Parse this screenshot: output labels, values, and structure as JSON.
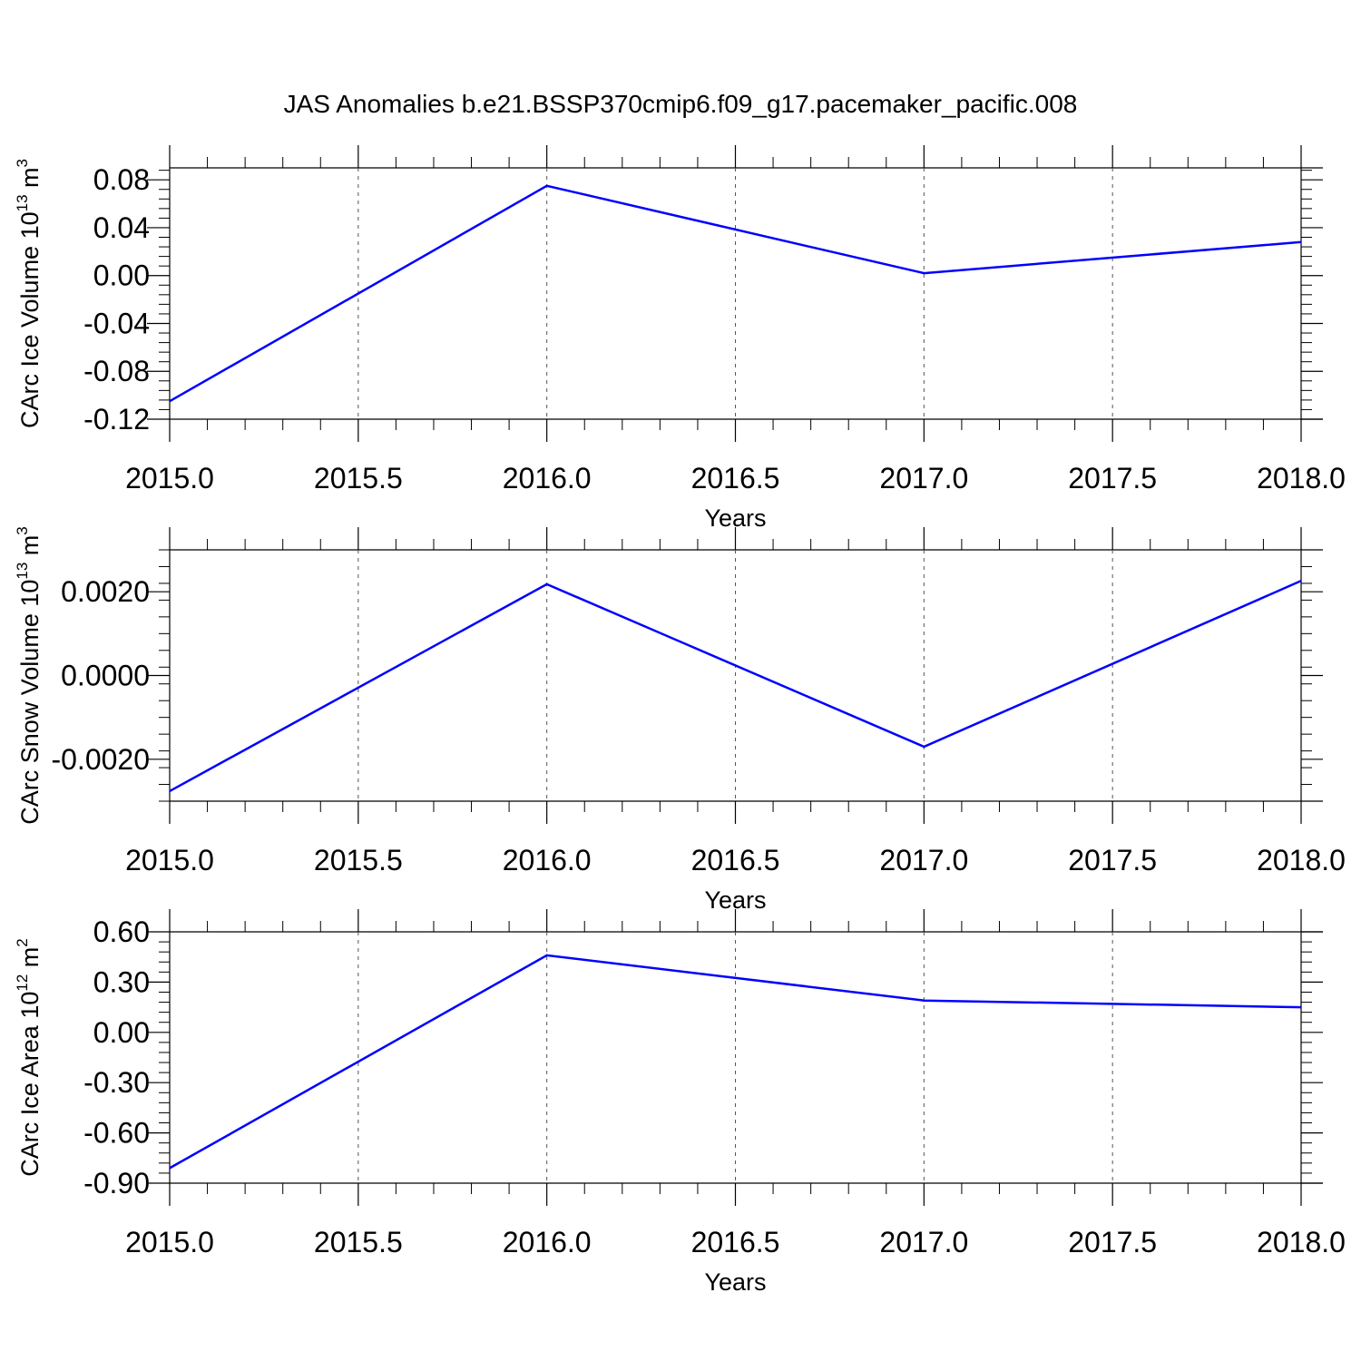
{
  "title": "JAS Anomalies b.e21.BSSP370cmip6.f09_g17.pacemaker_pacific.008",
  "colors": {
    "line": "#0000ff",
    "axis": "#000000",
    "grid": "#555555",
    "background": "#ffffff"
  },
  "chart_data": [
    {
      "type": "line",
      "xlabel": "Years",
      "ylabel": {
        "text": "CArc Ice Volume 10",
        "sup": "13",
        "unit": " m",
        "unit_sup": "3"
      },
      "xlim": [
        2015.0,
        2018.0
      ],
      "ylim": [
        -0.12,
        0.09
      ],
      "x_ticks": [
        "2015.0",
        "2015.5",
        "2016.0",
        "2016.5",
        "2017.0",
        "2017.5",
        "2018.0"
      ],
      "y_ticks": [
        "0.08",
        "0.04",
        "0.00",
        "-0.04",
        "-0.08",
        "-0.12"
      ],
      "y_tick_values": [
        0.08,
        0.04,
        0.0,
        -0.04,
        -0.08,
        -0.12
      ],
      "grid": "vertical dashed",
      "x": [
        2015,
        2016,
        2017,
        2018
      ],
      "series": [
        {
          "values": [
            -0.105,
            0.075,
            0.002,
            0.028
          ]
        }
      ]
    },
    {
      "type": "line",
      "xlabel": "Years",
      "ylabel": {
        "text": "CArc Snow Volume 10",
        "sup": "13",
        "unit": " m",
        "unit_sup": "3"
      },
      "xlim": [
        2015.0,
        2018.0
      ],
      "ylim": [
        -0.003,
        0.003
      ],
      "x_ticks": [
        "2015.0",
        "2015.5",
        "2016.0",
        "2016.5",
        "2017.0",
        "2017.5",
        "2018.0"
      ],
      "y_ticks": [
        "0.0020",
        "0.0000",
        "-0.0020"
      ],
      "y_tick_values": [
        0.002,
        0.0,
        -0.002
      ],
      "grid": "vertical dashed",
      "x": [
        2015,
        2016,
        2017,
        2018
      ],
      "series": [
        {
          "values": [
            -0.00276,
            0.00218,
            -0.0017,
            0.00226
          ]
        }
      ]
    },
    {
      "type": "line",
      "xlabel": "Years",
      "ylabel": {
        "text": "CArc Ice Area 10",
        "sup": "12",
        "unit": " m",
        "unit_sup": "2"
      },
      "xlim": [
        2015.0,
        2018.0
      ],
      "ylim": [
        -0.9,
        0.6
      ],
      "x_ticks": [
        "2015.0",
        "2015.5",
        "2016.0",
        "2016.5",
        "2017.0",
        "2017.5",
        "2018.0"
      ],
      "y_ticks": [
        "0.60",
        "0.30",
        "0.00",
        "-0.30",
        "-0.60",
        "-0.90"
      ],
      "y_tick_values": [
        0.6,
        0.3,
        0.0,
        -0.3,
        -0.6,
        -0.9
      ],
      "grid": "vertical dashed",
      "x": [
        2015,
        2016,
        2017,
        2018
      ],
      "series": [
        {
          "values": [
            -0.81,
            0.46,
            0.19,
            0.15
          ]
        }
      ]
    }
  ]
}
